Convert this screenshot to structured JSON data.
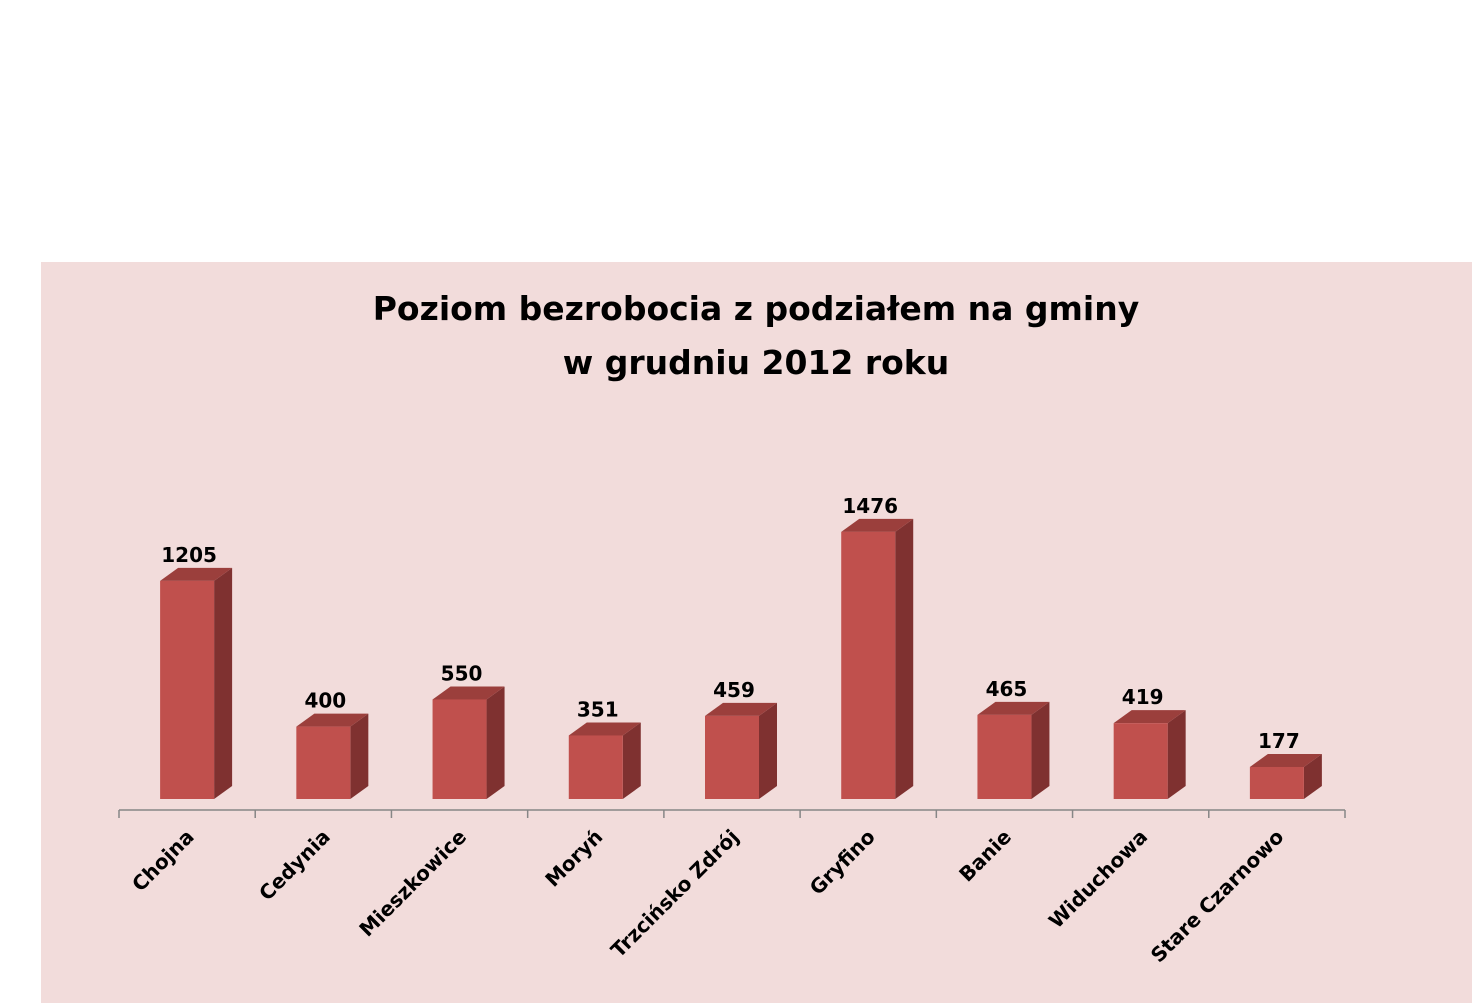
{
  "chart_data": {
    "type": "bar",
    "title": "Poziom bezrobocia z podziałem na gminy",
    "subtitle": "w grudniu 2012 roku",
    "categories": [
      "Chojna",
      "Cedynia",
      "Mieszkowice",
      "Moryń",
      "Trzcińsko Zdrój",
      "Gryfino",
      "Banie",
      "Widuchowa",
      "Stare Czarnowo"
    ],
    "values": [
      1205,
      400,
      550,
      351,
      459,
      1476,
      465,
      419,
      177
    ],
    "xlabel": "",
    "ylabel": "",
    "ylim": [
      0,
      1600
    ],
    "grid": false,
    "legend": "none",
    "style": "3d-column",
    "colors": {
      "bar_front": "#c0504d",
      "bar_side": "#7f3130",
      "bar_top": "#9b3f3c",
      "panel_background": "#f2dcdb",
      "axis": "#868686"
    }
  }
}
